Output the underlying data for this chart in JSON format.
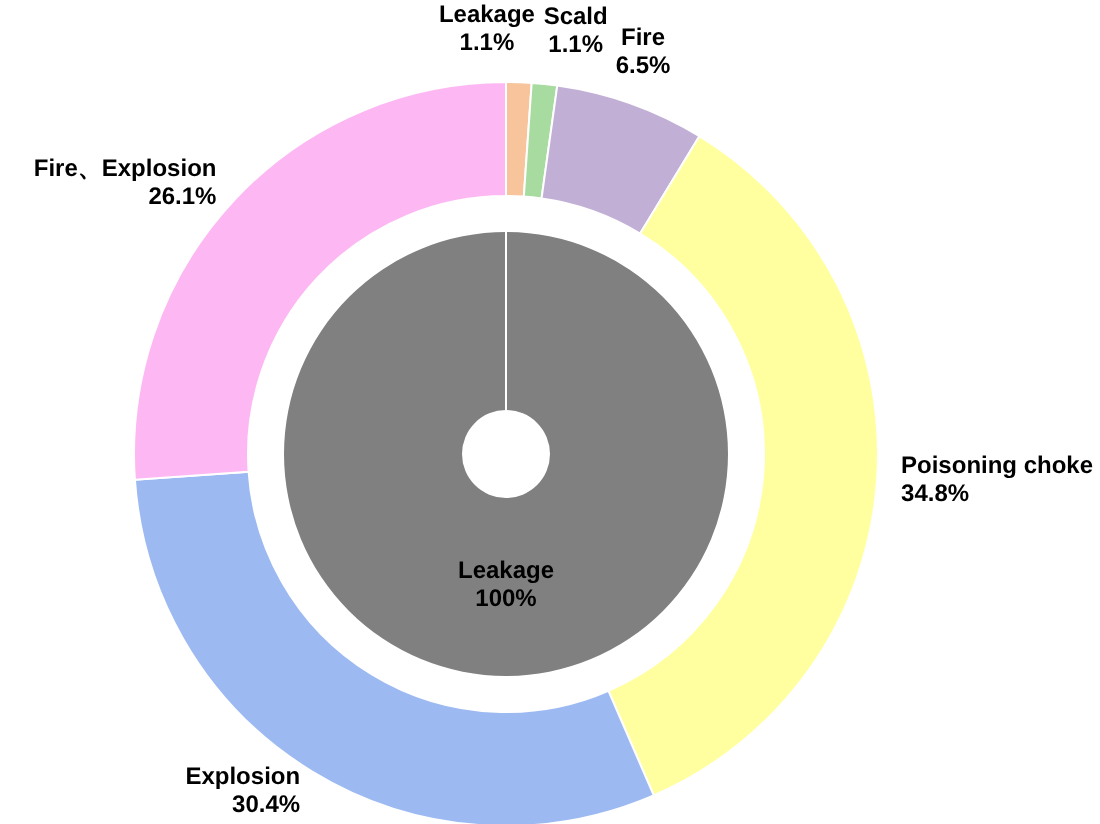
{
  "chart_data": [
    {
      "type": "donut",
      "categories": [
        "Leakage",
        "Scald",
        "Fire",
        "Poisoning choke",
        "Explosion",
        "Fire、Explosion"
      ],
      "values": [
        1.1,
        1.1,
        6.5,
        34.8,
        30.4,
        26.1
      ],
      "colors": [
        "#f8c49c",
        "#a8dba0",
        "#c1afd6",
        "#ffff9f",
        "#9cbaf1",
        "#fdb8f3"
      ],
      "value_labels": [
        "1.1%",
        "1.1%",
        "6.5%",
        "34.8%",
        "30.4%",
        "26.1%"
      ]
    },
    {
      "type": "pie",
      "categories": [
        "Leakage"
      ],
      "values": [
        100
      ],
      "colors": [
        "#808080"
      ],
      "value_labels": [
        "100%"
      ]
    }
  ]
}
